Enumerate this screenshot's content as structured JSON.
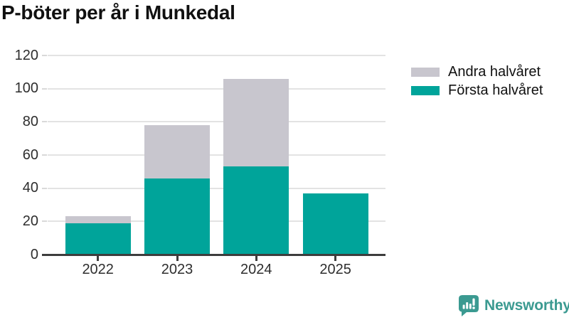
{
  "title": "P-böter per år i Munkedal",
  "chart_data": {
    "type": "bar",
    "stacked": true,
    "title": "P-böter per år i Munkedal",
    "categories": [
      "2022",
      "2023",
      "2024",
      "2025"
    ],
    "series": [
      {
        "name": "Första halvåret",
        "color": "#00a49a",
        "values": [
          19,
          46,
          53,
          37
        ]
      },
      {
        "name": "Andra halvåret",
        "color": "#c8c6ce",
        "values": [
          4,
          32,
          53,
          0
        ]
      }
    ],
    "totals": [
      23,
      78,
      106,
      37
    ],
    "xlabel": "",
    "ylabel": "",
    "ylim": [
      0,
      120
    ],
    "yticks": [
      0,
      20,
      40,
      60,
      80,
      100,
      120
    ],
    "grid": true,
    "legend_position": "top-right"
  },
  "legend": {
    "items": [
      {
        "label": "Andra halvåret",
        "color": "#c8c6ce"
      },
      {
        "label": "Första halvåret",
        "color": "#00a49a"
      }
    ]
  },
  "branding": {
    "logo_text": "Newsworthy",
    "logo_color": "#3b9a91"
  },
  "colors": {
    "background": "#ffffff",
    "title_text": "#101010",
    "axis_label": "#2e2e2e",
    "gridline": "#e3e3e3",
    "axis_line": "#3d3d3d",
    "tick_light": "#d9d9d9"
  }
}
